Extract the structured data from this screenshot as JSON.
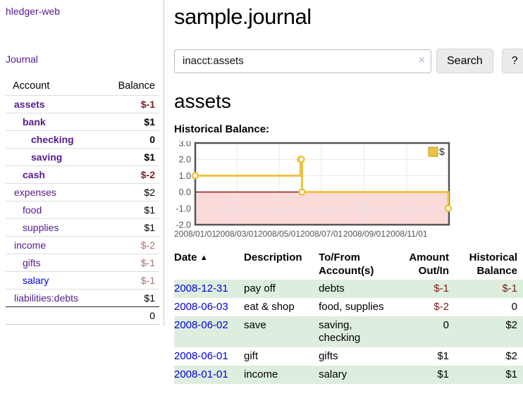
{
  "sidebar": {
    "app_title": "hledger-web",
    "journal_label": "Journal",
    "headers": {
      "account": "Account",
      "balance": "Balance"
    },
    "accounts": [
      {
        "name": "assets",
        "balance": "$-1"
      },
      {
        "name": "bank",
        "balance": "$1"
      },
      {
        "name": "checking",
        "balance": "0"
      },
      {
        "name": "saving",
        "balance": "$1"
      },
      {
        "name": "cash",
        "balance": "$-2"
      },
      {
        "name": "expenses",
        "balance": "$2"
      },
      {
        "name": "food",
        "balance": "$1"
      },
      {
        "name": "supplies",
        "balance": "$1"
      },
      {
        "name": "income",
        "balance": "$-2"
      },
      {
        "name": "gifts",
        "balance": "$-1"
      },
      {
        "name": "salary",
        "balance": "$-1"
      },
      {
        "name": "liabilities:debts",
        "balance": "$1"
      }
    ],
    "total": "0"
  },
  "header": {
    "title": "sample.journal"
  },
  "search": {
    "query": "inacct:assets",
    "clear_icon": "×",
    "search_label": "Search",
    "help_label": "?"
  },
  "main": {
    "account_heading": "assets",
    "chart_heading": "Historical Balance:"
  },
  "chart_data": {
    "type": "line",
    "style": "step",
    "title": "Historical Balance:",
    "series": [
      {
        "name": "$",
        "color": "#EDC240",
        "points": [
          [
            "2008-01-01",
            1
          ],
          [
            "2008-06-01",
            2
          ],
          [
            "2008-06-02",
            2
          ],
          [
            "2008-06-03",
            0
          ],
          [
            "2008-12-31",
            -1
          ]
        ]
      }
    ],
    "x_domain": [
      "2008-01-01",
      "2009-01-01"
    ],
    "ylim": [
      -2,
      3
    ],
    "y_ticks": [
      3.0,
      2.0,
      1.0,
      0.0,
      -1.0,
      -2.0
    ],
    "x_ticks": [
      "2008/01/01",
      "2008/03/01",
      "2008/05/01",
      "2008/07/01",
      "2008/09/01",
      "2008/11/01"
    ],
    "legend_position": "top-right",
    "grid": true,
    "colors": {
      "negative_region": "#fbdada",
      "zero_line": "#8b0000",
      "grid": "#e9e9e9",
      "border": "#545454",
      "tick_text": "#545454",
      "legend_swatch_border": "#c49a1f"
    }
  },
  "register": {
    "headers": {
      "date": "Date",
      "sort_indicator": "▲",
      "description": "Description",
      "accounts": "To/From Account(s)",
      "amount": "Amount Out/In",
      "balance": "Historical Balance"
    },
    "rows": [
      {
        "date": "2008-12-31",
        "description": "pay off",
        "accounts": "debts",
        "amount": "$-1",
        "balance": "$-1"
      },
      {
        "date": "2008-06-03",
        "description": "eat & shop",
        "accounts": "food, supplies",
        "amount": "$-2",
        "balance": "0"
      },
      {
        "date": "2008-06-02",
        "description": "save",
        "accounts": "saving, checking",
        "amount": "0",
        "balance": "$2"
      },
      {
        "date": "2008-06-01",
        "description": "gift",
        "accounts": "gifts",
        "amount": "$1",
        "balance": "$2"
      },
      {
        "date": "2008-01-01",
        "description": "income",
        "accounts": "salary",
        "amount": "$1",
        "balance": "$1"
      }
    ]
  }
}
